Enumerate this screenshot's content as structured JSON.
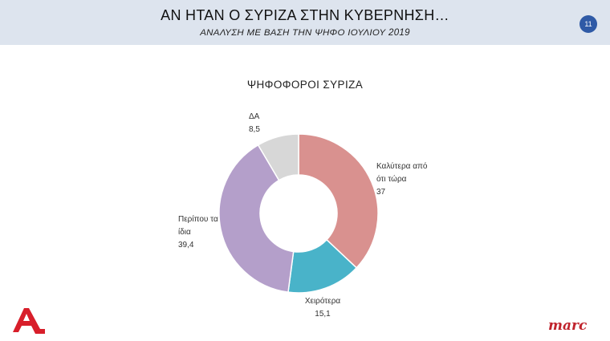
{
  "header": {
    "title": "ΑΝ ΗΤΑΝ Ο ΣΥΡΙΖΑ ΣΤΗΝ ΚΥΒΕΡΝΗΣΗ…",
    "subtitle": "ΑΝΑΛΥΣΗ ΜΕ ΒΑΣΗ ΤΗΝ ΨΗΦΟ ΙΟΥΛΙΟΥ 2019",
    "page_number": "11"
  },
  "logos": {
    "left": "Alpha",
    "right": "marc"
  },
  "chart_data": {
    "type": "pie",
    "donut": true,
    "title": "ΨΗΦΟΦΟΡΟΙ ΣΥΡΙΖΑ",
    "slices": [
      {
        "label_lines": [
          "Καλύτερα από",
          "ότι τώρα"
        ],
        "value_text": "37",
        "value": 37,
        "color": "#d9918f"
      },
      {
        "label_lines": [
          "Χειρότερα"
        ],
        "value_text": "15,1",
        "value": 15.1,
        "color": "#49b3c9"
      },
      {
        "label_lines": [
          "Περίπου τα",
          "ίδια"
        ],
        "value_text": "39,4",
        "value": 39.4,
        "color": "#b49fca"
      },
      {
        "label_lines": [
          "ΔΑ"
        ],
        "value_text": "8,5",
        "value": 8.5,
        "color": "#d7d7d7"
      }
    ]
  }
}
